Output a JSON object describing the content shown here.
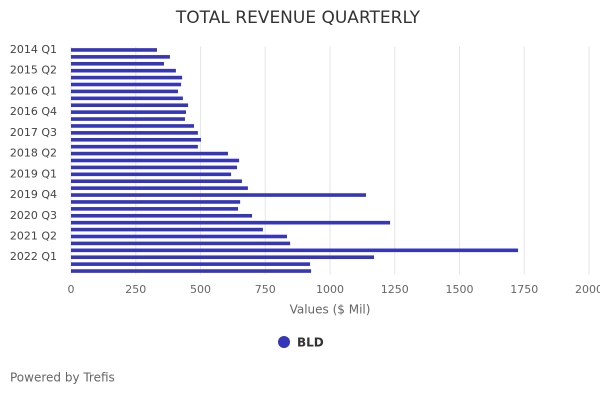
{
  "chart_data": {
    "type": "hbar",
    "title": "TOTAL REVENUE QUARTERLY",
    "x_label": "Values ($ Mil)",
    "categories": [
      "2014 Q1",
      null,
      null,
      "2015 Q2",
      null,
      null,
      "2016 Q1",
      null,
      null,
      "2016 Q4",
      null,
      null,
      "2017 Q3",
      null,
      null,
      "2018 Q2",
      null,
      null,
      "2019 Q1",
      null,
      null,
      "2019 Q4",
      null,
      null,
      "2020 Q3",
      null,
      null,
      "2021 Q2",
      null,
      null,
      "2022 Q1",
      null,
      null
    ],
    "series": [
      {
        "name": "BLD",
        "color": "#3636b8",
        "values": [
          332,
          382,
          359,
          405,
          429,
          425,
          413,
          432,
          452,
          444,
          440,
          475,
          490,
          502,
          490,
          606,
          649,
          641,
          618,
          660,
          683,
          1139,
          653,
          645,
          699,
          1232,
          741,
          834,
          846,
          1726,
          1170,
          923,
          927
        ]
      }
    ],
    "xlim": [
      0,
      2000
    ],
    "xticks": [
      0,
      250,
      500,
      750,
      1000,
      1250,
      1500,
      1750,
      2000
    ],
    "grid": true,
    "footer": "Powered by Trefis"
  }
}
